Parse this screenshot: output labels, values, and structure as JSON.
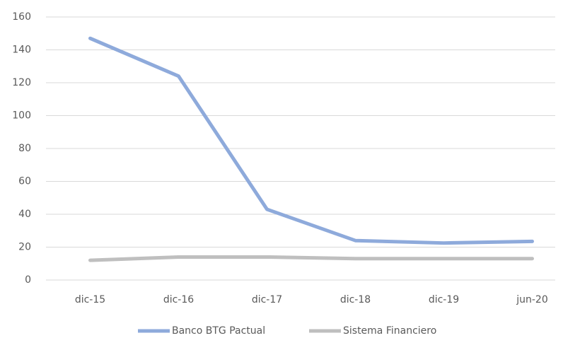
{
  "chart_data": {
    "type": "line",
    "categories": [
      "dic-15",
      "dic-16",
      "dic-17",
      "dic-18",
      "dic-19",
      "jun-20"
    ],
    "series": [
      {
        "name": "Banco BTG Pactual",
        "color": "#8eaadb",
        "values": [
          147,
          124,
          43,
          24,
          22.5,
          23.5
        ]
      },
      {
        "name": "Sistema Financiero",
        "color": "#bfbfbf",
        "values": [
          12,
          14,
          14,
          13,
          13,
          13
        ]
      }
    ],
    "ylim": [
      0,
      160
    ],
    "yticks": [
      0,
      20,
      40,
      60,
      80,
      100,
      120,
      140,
      160
    ],
    "grid": true,
    "legend": "bottom"
  }
}
